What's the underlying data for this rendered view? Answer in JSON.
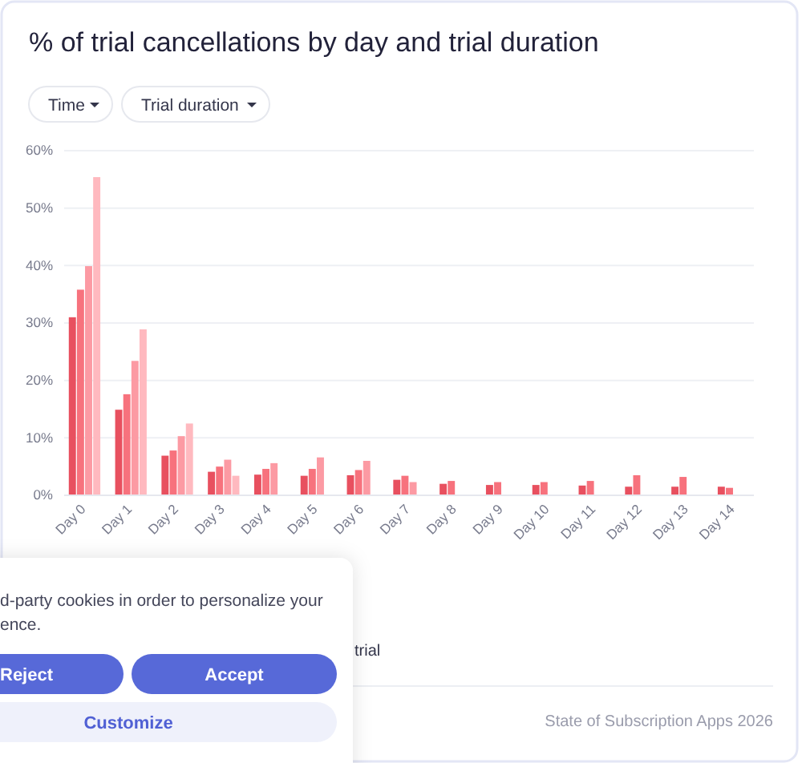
{
  "chart_data": {
    "type": "bar",
    "title": "% of trial cancellations by day and trial duration",
    "categories": [
      "Day 0",
      "Day 1",
      "Day 2",
      "Day 3",
      "Day 4",
      "Day 5",
      "Day 6",
      "Day 7",
      "Day 8",
      "Day 9",
      "Day 10",
      "Day 11",
      "Day 12",
      "Day 13",
      "Day 14"
    ],
    "series": [
      {
        "color": "#e8505f",
        "values": [
          31.0,
          14.9,
          6.9,
          4.1,
          3.6,
          3.4,
          3.5,
          2.7,
          2.0,
          1.8,
          1.8,
          1.7,
          1.5,
          1.5,
          1.5
        ]
      },
      {
        "color": "#f7727d",
        "values": [
          35.8,
          17.6,
          7.8,
          5.0,
          4.6,
          4.6,
          4.4,
          3.4,
          2.5,
          2.3,
          2.3,
          2.5,
          3.5,
          3.2,
          1.3
        ]
      },
      {
        "color": "#fc9aa3",
        "values": [
          39.9,
          23.4,
          10.3,
          6.2,
          5.6,
          6.6,
          6.0,
          2.3,
          null,
          null,
          null,
          null,
          null,
          null,
          null
        ]
      },
      {
        "color": "#ffb9bf",
        "values": [
          55.4,
          28.9,
          12.5,
          3.4,
          null,
          null,
          null,
          null,
          null,
          null,
          null,
          null,
          null,
          null,
          null
        ]
      }
    ],
    "ylim": [
      0,
      60
    ],
    "yticks": [
      {
        "value": 0,
        "label": "0%"
      },
      {
        "value": 10,
        "label": "10%"
      },
      {
        "value": 20,
        "label": "20%"
      },
      {
        "value": 30,
        "label": "30%"
      },
      {
        "value": 40,
        "label": "40%"
      },
      {
        "value": 50,
        "label": "50%"
      },
      {
        "value": 60,
        "label": "60%"
      }
    ],
    "grid": "y",
    "annotations": [
      "Time",
      "Trial duration",
      "trial",
      "State of Subscription Apps 2026",
      "d-party cookies in order to personalize your",
      "ence.",
      "Reject",
      "Accept",
      "Customize"
    ]
  }
}
